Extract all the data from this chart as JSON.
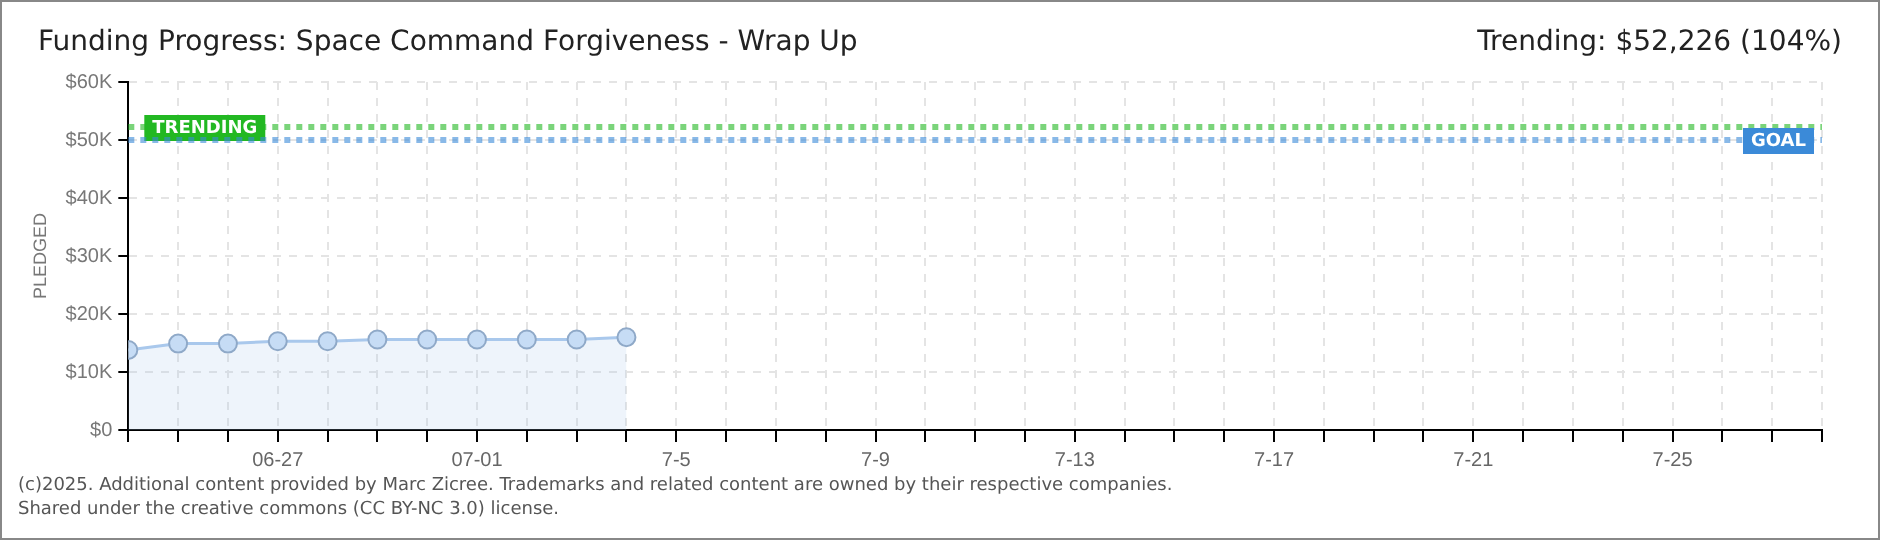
{
  "chart_data": {
    "type": "area",
    "title": "Funding Progress: Space Command Forgiveness - Wrap Up",
    "subtitle": "Trending: $52,226 (104%)",
    "ylabel": "PLEDGED",
    "x": [
      "--06-24",
      "--06-25",
      "--06-26",
      "--06-27",
      "--06-28",
      "--06-29",
      "--06-30",
      "--07-01",
      "--07-02",
      "--07-03",
      "--07-04"
    ],
    "series": [
      {
        "color": "#a9c8ec",
        "values": [
          13800,
          14900,
          14900,
          15300,
          15300,
          15600,
          15600,
          15600,
          15600,
          15600,
          16000
        ]
      }
    ],
    "xlim": [
      "--06-24",
      "--07-28"
    ],
    "xticks": [
      {
        "value": "--06-24",
        "label": null
      },
      {
        "value": "--06-25",
        "label": null
      },
      {
        "value": "--06-26",
        "label": null
      },
      {
        "value": "--06-27",
        "label": "06-27"
      },
      {
        "value": "--06-28",
        "label": null
      },
      {
        "value": "--06-29",
        "label": null
      },
      {
        "value": "--06-30",
        "label": null
      },
      {
        "value": "--07-01",
        "label": "07-01"
      },
      {
        "value": "--07-02",
        "label": null
      },
      {
        "value": "--07-03",
        "label": null
      },
      {
        "value": "--07-04",
        "label": null
      },
      {
        "value": "--07-05",
        "label": "7-5"
      },
      {
        "value": "--07-06",
        "label": null
      },
      {
        "value": "--07-07",
        "label": null
      },
      {
        "value": "--07-08",
        "label": null
      },
      {
        "value": "--07-09",
        "label": "7-9"
      },
      {
        "value": "--07-10",
        "label": null
      },
      {
        "value": "--07-11",
        "label": null
      },
      {
        "value": "--07-12",
        "label": null
      },
      {
        "value": "--07-13",
        "label": "7-13"
      },
      {
        "value": "--07-14",
        "label": null
      },
      {
        "value": "--07-15",
        "label": null
      },
      {
        "value": "--07-16",
        "label": null
      },
      {
        "value": "--07-17",
        "label": "7-17"
      },
      {
        "value": "--07-18",
        "label": null
      },
      {
        "value": "--07-19",
        "label": null
      },
      {
        "value": "--07-20",
        "label": null
      },
      {
        "value": "--07-21",
        "label": "7-21"
      },
      {
        "value": "--07-22",
        "label": null
      },
      {
        "value": "--07-23",
        "label": null
      },
      {
        "value": "--07-24",
        "label": null
      },
      {
        "value": "--07-25",
        "label": "7-25"
      },
      {
        "value": "--07-26",
        "label": null
      },
      {
        "value": "--07-27",
        "label": null
      },
      {
        "value": "--07-28",
        "label": null
      }
    ],
    "ylim": [
      0,
      60000
    ],
    "yticks": [
      {
        "value": 0,
        "label": "$0"
      },
      {
        "value": 10000,
        "label": "$10K"
      },
      {
        "value": 20000,
        "label": "$20K"
      },
      {
        "value": 30000,
        "label": "$30K"
      },
      {
        "value": 40000,
        "label": "$40K"
      },
      {
        "value": 50000,
        "label": "$50K"
      },
      {
        "value": 60000,
        "label": "$60K"
      }
    ],
    "ref_lines": [
      {
        "axis": "y",
        "value": 52226,
        "label": "TRENDING",
        "color": "#22b822",
        "line_style": "dotted"
      },
      {
        "axis": "y",
        "value": 50000,
        "label": "GOAL",
        "color": "#3b8ad8",
        "line_style": "dotted"
      }
    ],
    "grid": true,
    "legend": false,
    "marker": "circle",
    "line_style": "solid",
    "annotations": [
      "(c)2025. Additional content provided by Marc Zicree. Trademarks and related content are owned by their respective companies.",
      "Shared under the creative commons (CC BY-NC 3.0) license."
    ]
  }
}
